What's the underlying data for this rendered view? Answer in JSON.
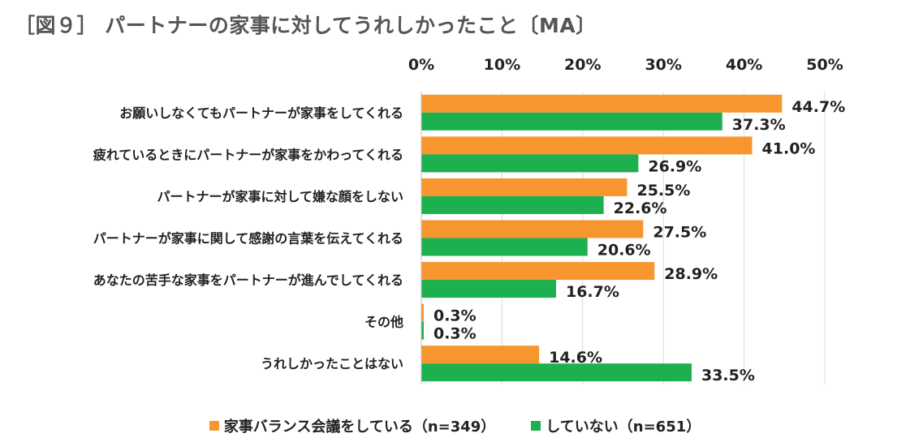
{
  "title": "［図９］ パートナーの家事に対してうれしかったこと〔MA〕",
  "colors": {
    "series1": "#F7962F",
    "series2": "#1DB04E",
    "grid": "#D9D9D9",
    "text": "#222222"
  },
  "chart_data": {
    "type": "bar",
    "orientation": "horizontal",
    "title": "［図９］ パートナーの家事に対してうれしかったこと〔MA〕",
    "categories": [
      "お願いしなくてもパートナーが家事をしてくれる",
      "疲れているときにパートナーが家事をかわってくれる",
      "パートナーが家事に対して嫌な顔をしない",
      "パートナーが家事に関して感謝の言葉を伝えてくれる",
      "あなたの苦手な家事をパートナーが進んでしてくれる",
      "その他",
      "うれしかったことはない"
    ],
    "series": [
      {
        "name": "家事バランス会議をしている（n=349）",
        "values": [
          44.7,
          41.0,
          25.5,
          27.5,
          28.9,
          0.3,
          14.6
        ]
      },
      {
        "name": "していない（n=651）",
        "values": [
          37.3,
          26.9,
          22.6,
          20.6,
          16.7,
          0.3,
          33.5
        ]
      }
    ],
    "xlim": [
      0,
      50
    ],
    "xticks": [
      0,
      10,
      20,
      30,
      40,
      50
    ],
    "tick_suffix": "%",
    "xaxis_position": "top",
    "grid": true,
    "legend_position": "bottom",
    "xlabel": "",
    "ylabel": ""
  }
}
